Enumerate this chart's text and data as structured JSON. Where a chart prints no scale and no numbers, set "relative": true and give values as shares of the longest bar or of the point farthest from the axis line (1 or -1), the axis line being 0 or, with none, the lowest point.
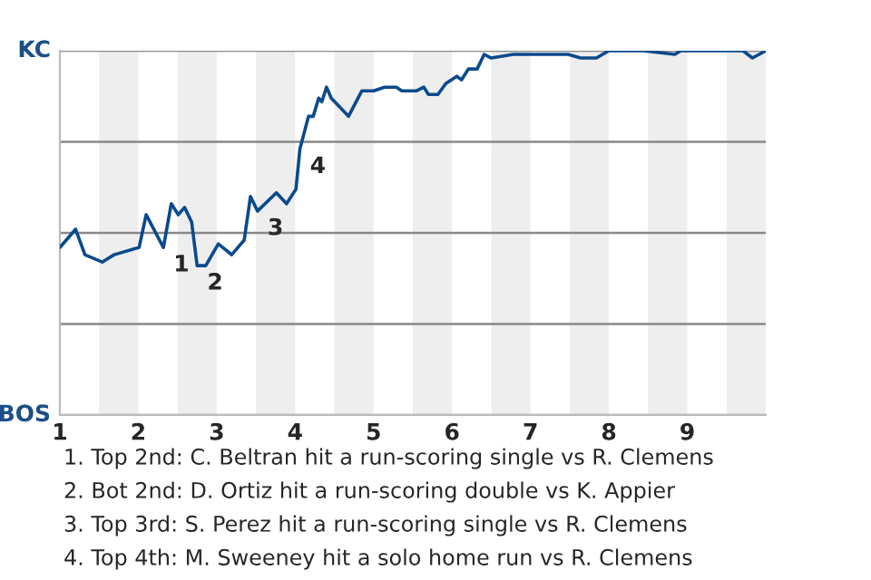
{
  "chart_data": {
    "type": "line",
    "relative": true,
    "x": [
      1.0,
      1.2,
      1.32,
      1.54,
      1.69,
      2.01,
      2.1,
      2.32,
      2.42,
      2.51,
      2.59,
      2.68,
      2.75,
      2.86,
      3.02,
      3.19,
      3.35,
      3.43,
      3.52,
      3.76,
      3.89,
      4.01,
      4.06,
      4.17,
      4.23,
      4.3,
      4.34,
      4.4,
      4.46,
      4.68,
      4.85,
      5.0,
      5.14,
      5.29,
      5.36,
      5.43,
      5.55,
      5.64,
      5.7,
      5.82,
      5.92,
      6.06,
      6.12,
      6.21,
      6.32,
      6.41,
      6.5,
      6.78,
      6.94,
      7.48,
      7.64,
      7.84,
      8.0,
      8.44,
      8.84,
      8.92,
      9.71,
      9.83,
      10.0
    ],
    "series": [
      {
        "color": "#0b4a8b",
        "values": [
          0.46,
          0.51,
          0.44,
          0.42,
          0.44,
          0.46,
          0.55,
          0.46,
          0.58,
          0.55,
          0.57,
          0.53,
          0.41,
          0.41,
          0.47,
          0.44,
          0.48,
          0.6,
          0.56,
          0.61,
          0.58,
          0.62,
          0.73,
          0.82,
          0.82,
          0.87,
          0.86,
          0.9,
          0.87,
          0.82,
          0.89,
          0.89,
          0.9,
          0.9,
          0.89,
          0.89,
          0.89,
          0.9,
          0.88,
          0.88,
          0.91,
          0.93,
          0.92,
          0.95,
          0.95,
          0.99,
          0.98,
          0.99,
          0.99,
          0.99,
          0.98,
          0.98,
          1.0,
          1.0,
          0.99,
          1.0,
          1.0,
          0.98,
          1.0
        ]
      }
    ],
    "xlim": [
      1,
      10
    ],
    "xticks": [
      1,
      2,
      3,
      4,
      5,
      6,
      7,
      8,
      9
    ],
    "bands": [
      {
        "axis": "x",
        "from": 1.5,
        "to": 2,
        "color": "#eeeeee"
      },
      {
        "axis": "x",
        "from": 2.5,
        "to": 3,
        "color": "#eeeeee"
      },
      {
        "axis": "x",
        "from": 3.5,
        "to": 4,
        "color": "#eeeeee"
      },
      {
        "axis": "x",
        "from": 4.5,
        "to": 5,
        "color": "#eeeeee"
      },
      {
        "axis": "x",
        "from": 5.5,
        "to": 6,
        "color": "#eeeeee"
      },
      {
        "axis": "x",
        "from": 6.5,
        "to": 7,
        "color": "#eeeeee"
      },
      {
        "axis": "x",
        "from": 7.5,
        "to": 8,
        "color": "#eeeeee"
      },
      {
        "axis": "x",
        "from": 8.5,
        "to": 9,
        "color": "#eeeeee"
      },
      {
        "axis": "x",
        "from": 9.5,
        "to": 10,
        "color": "#eeeeee"
      }
    ],
    "annotations": [
      "KC",
      "BOS",
      {
        "text": "1",
        "x": 2.32,
        "y": 0.46
      },
      {
        "text": "2",
        "x": 2.75,
        "y": 0.41
      },
      {
        "text": "3",
        "x": 3.52,
        "y": 0.56
      },
      {
        "text": "4",
        "x": 4.06,
        "y": 0.73
      },
      "1. Top 2nd: C. Beltran hit a run-scoring single vs R. Clemens",
      "2. Bot 2nd: D. Ortiz hit a run-scoring double vs K. Appier",
      "3. Top 3rd: S. Perez hit a run-scoring single vs R. Clemens",
      "4. Top 4th: M. Sweeney hit a solo home run vs R. Clemens"
    ],
    "grid": "y",
    "legend": false,
    "marker": "none",
    "line_style": "solid"
  }
}
